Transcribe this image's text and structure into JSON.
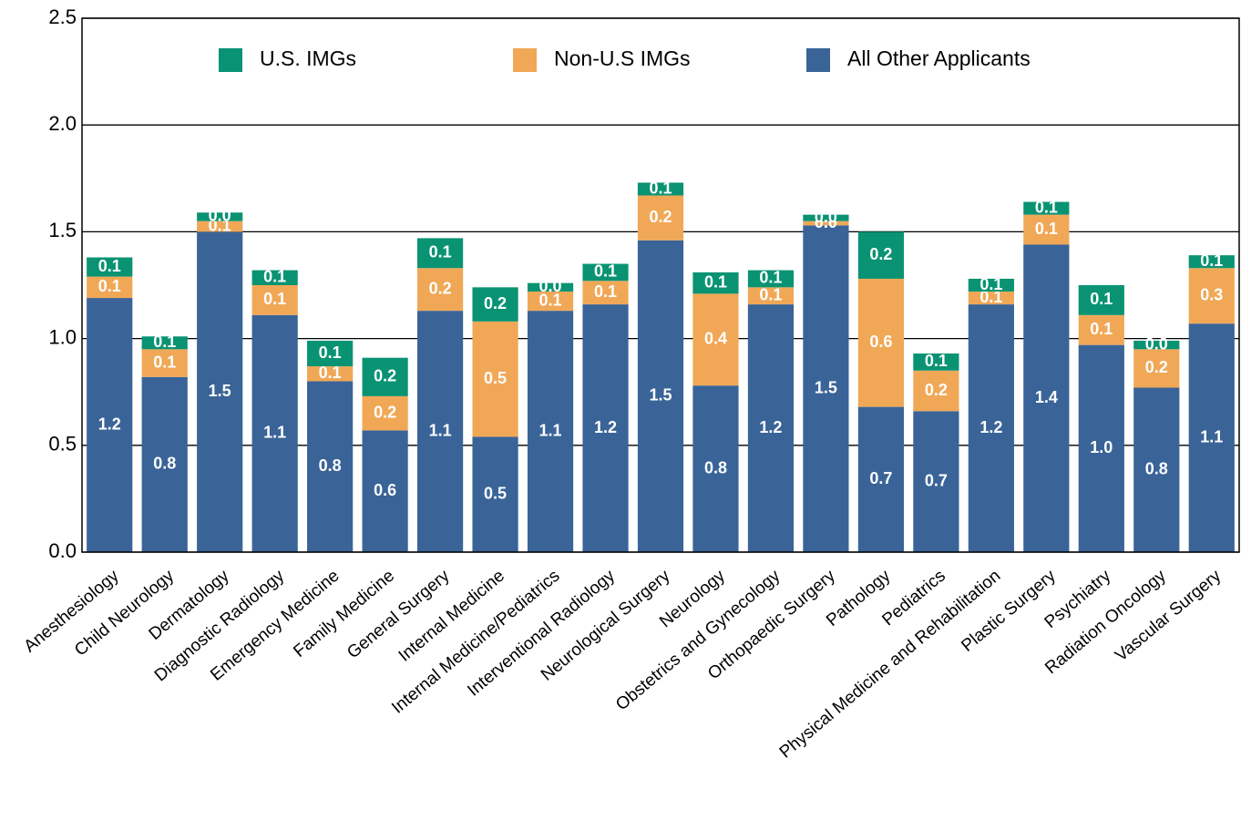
{
  "chart_data": {
    "type": "stacked_bar",
    "categories": [
      "Anesthesiology",
      "Child Neurology",
      "Dermatology",
      "Diagnostic Radiology",
      "Emergency Medicine",
      "Family Medicine",
      "General Surgery",
      "Internal Medicine",
      "Internal Medicine/Pediatrics",
      "Interventional Radiology",
      "Neurological Surgery",
      "Neurology",
      "Obstetrics and Gynecology",
      "Orthopaedic Surgery",
      "Pathology",
      "Pediatrics",
      "Physical Medicine and Rehabilitation",
      "Plastic Surgery",
      "Psychiatry",
      "Radiation Oncology",
      "Vascular Surgery"
    ],
    "series": [
      {
        "name": "All Other Applicants",
        "color": "#3a6498",
        "values": [
          1.19,
          0.82,
          1.5,
          1.11,
          0.8,
          0.57,
          1.13,
          0.54,
          1.13,
          1.16,
          1.46,
          0.78,
          1.16,
          1.53,
          0.68,
          0.66,
          1.16,
          1.44,
          0.97,
          0.77,
          1.07
        ],
        "value_labels": [
          "1.2",
          "0.8",
          "1.5",
          "1.1",
          "0.8",
          "0.6",
          "1.1",
          "0.5",
          "1.1",
          "1.2",
          "1.5",
          "0.8",
          "1.2",
          "1.5",
          "0.7",
          "0.7",
          "1.2",
          "1.4",
          "1.0",
          "0.8",
          "1.1"
        ]
      },
      {
        "name": "Non-U.S IMGs",
        "color": "#f0a857",
        "values": [
          0.1,
          0.13,
          0.05,
          0.14,
          0.07,
          0.16,
          0.2,
          0.54,
          0.09,
          0.11,
          0.21,
          0.43,
          0.08,
          0.02,
          0.6,
          0.19,
          0.06,
          0.14,
          0.14,
          0.18,
          0.26
        ],
        "value_labels": [
          "0.1",
          "0.1",
          "0.1",
          "0.1",
          "0.1",
          "0.2",
          "0.2",
          "0.5",
          "0.1",
          "0.1",
          "0.2",
          "0.4",
          "0.1",
          "0.0",
          "0.6",
          "0.2",
          "0.1",
          "0.1",
          "0.1",
          "0.2",
          "0.3"
        ]
      },
      {
        "name": "U.S. IMGs",
        "color": "#0a9373",
        "values": [
          0.09,
          0.06,
          0.04,
          0.07,
          0.12,
          0.18,
          0.14,
          0.16,
          0.04,
          0.08,
          0.06,
          0.1,
          0.08,
          0.03,
          0.22,
          0.08,
          0.06,
          0.06,
          0.14,
          0.04,
          0.06
        ],
        "value_labels": [
          "0.1",
          "0.1",
          "0.0",
          "0.1",
          "0.1",
          "0.2",
          "0.1",
          "0.2",
          "0.0",
          "0.1",
          "0.1",
          "0.1",
          "0.1",
          "0.0",
          "0.2",
          "0.1",
          "0.1",
          "0.1",
          "0.1",
          "0.0",
          "0.1"
        ]
      }
    ],
    "ylim": [
      0,
      2.5
    ],
    "yticks": [
      {
        "value": 0,
        "label": "0.0"
      },
      0.5,
      {
        "value": 1,
        "label": "1.0"
      },
      1.5,
      {
        "value": 2,
        "label": "2.0"
      },
      2.5
    ],
    "grid": true,
    "legend": "top"
  }
}
